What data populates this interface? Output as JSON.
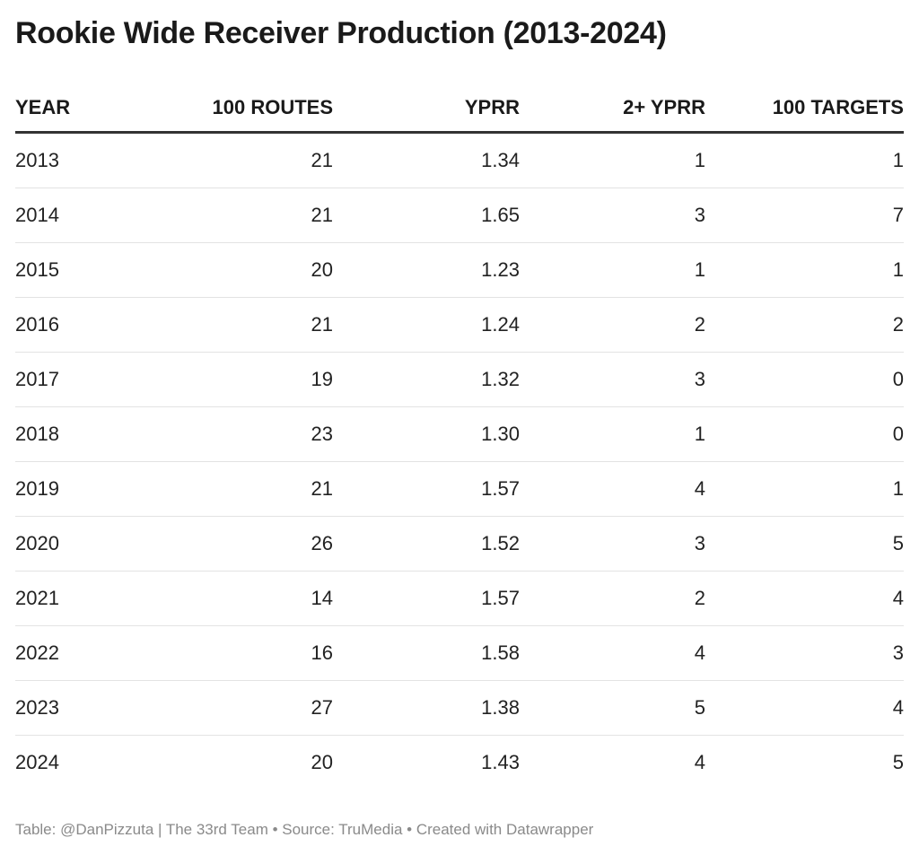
{
  "chart_data": {
    "type": "table",
    "title": "Rookie Wide Receiver Production (2013-2024)",
    "columns": [
      "YEAR",
      "100 ROUTES",
      "YPRR",
      "2+ YPRR",
      "100 TARGETS"
    ],
    "rows": [
      [
        "2013",
        "21",
        "1.34",
        "1",
        "1"
      ],
      [
        "2014",
        "21",
        "1.65",
        "3",
        "7"
      ],
      [
        "2015",
        "20",
        "1.23",
        "1",
        "1"
      ],
      [
        "2016",
        "21",
        "1.24",
        "2",
        "2"
      ],
      [
        "2017",
        "19",
        "1.32",
        "3",
        "0"
      ],
      [
        "2018",
        "23",
        "1.30",
        "1",
        "0"
      ],
      [
        "2019",
        "21",
        "1.57",
        "4",
        "1"
      ],
      [
        "2020",
        "26",
        "1.52",
        "3",
        "5"
      ],
      [
        "2021",
        "14",
        "1.57",
        "2",
        "4"
      ],
      [
        "2022",
        "16",
        "1.58",
        "4",
        "3"
      ],
      [
        "2023",
        "27",
        "1.38",
        "5",
        "4"
      ],
      [
        "2024",
        "20",
        "1.43",
        "4",
        "5"
      ]
    ],
    "footer": "Table: @DanPizzuta | The 33rd Team • Source: TruMedia • Created with Datawrapper"
  }
}
